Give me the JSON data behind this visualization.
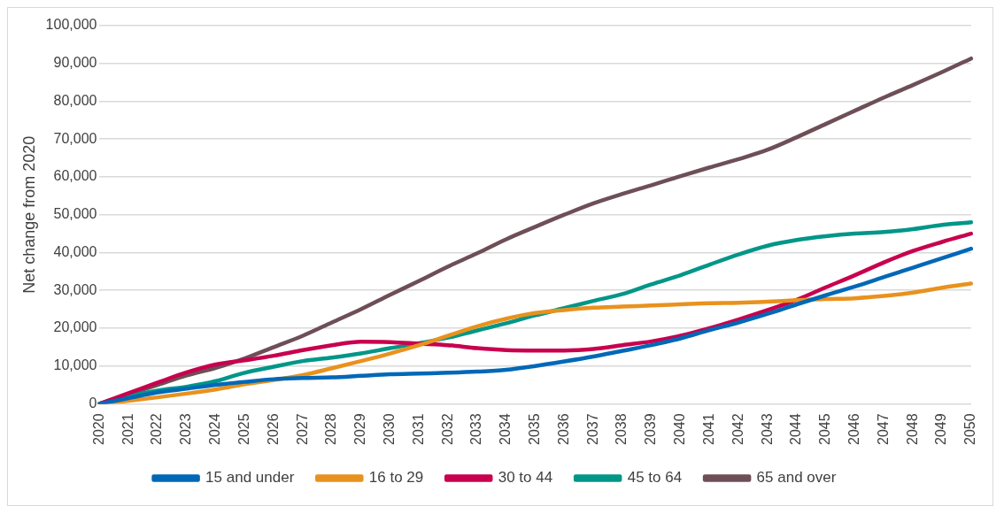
{
  "chart_data": {
    "type": "line",
    "ylabel": "Net change from 2020",
    "categories": [
      "2020",
      "2021",
      "2022",
      "2023",
      "2024",
      "2025",
      "2026",
      "2027",
      "2028",
      "2029",
      "2030",
      "2031",
      "2032",
      "2033",
      "2034",
      "2035",
      "2036",
      "2037",
      "2038",
      "2039",
      "2040",
      "2041",
      "2042",
      "2043",
      "2044",
      "2045",
      "2046",
      "2047",
      "2048",
      "2049",
      "2050"
    ],
    "ylim": [
      0,
      100000
    ],
    "yticks": [
      {
        "value": 0,
        "label": "0"
      },
      {
        "value": 10000,
        "label": "10,000"
      },
      {
        "value": 20000,
        "label": "20,000"
      },
      {
        "value": 30000,
        "label": "30,000"
      },
      {
        "value": 40000,
        "label": "40,000"
      },
      {
        "value": 50000,
        "label": "50,000"
      },
      {
        "value": 60000,
        "label": "60,000"
      },
      {
        "value": 70000,
        "label": "70,000"
      },
      {
        "value": 80000,
        "label": "80,000"
      },
      {
        "value": 90000,
        "label": "90,000"
      },
      {
        "value": 100000,
        "label": "100,000"
      }
    ],
    "grid": "y",
    "legend": "bottom",
    "marker": "none",
    "line_style": "solid",
    "series": [
      {
        "name": "15 and under",
        "color": "#0068b7",
        "values": [
          0,
          1500,
          3000,
          4000,
          5000,
          5800,
          6500,
          6800,
          7000,
          7400,
          7800,
          8000,
          8200,
          8500,
          9000,
          10000,
          11200,
          12500,
          14000,
          15500,
          17300,
          19500,
          21500,
          23800,
          26300,
          28700,
          31000,
          33500,
          36000,
          38500,
          41000
        ]
      },
      {
        "name": "16 to 29",
        "color": "#e8921e",
        "values": [
          0,
          800,
          1700,
          2700,
          3800,
          5200,
          6300,
          7600,
          9400,
          11300,
          13300,
          15500,
          18000,
          20500,
          22500,
          24000,
          24800,
          25400,
          25700,
          26000,
          26300,
          26600,
          26700,
          27000,
          27400,
          27700,
          27900,
          28500,
          29400,
          30700,
          31800
        ]
      },
      {
        "name": "30 to 44",
        "color": "#c8004e",
        "values": [
          0,
          2800,
          5600,
          8300,
          10400,
          11500,
          12700,
          14200,
          15500,
          16400,
          16300,
          15900,
          15500,
          14700,
          14200,
          14100,
          14100,
          14500,
          15500,
          16500,
          18000,
          20000,
          22300,
          24800,
          27500,
          30800,
          34000,
          37400,
          40400,
          42800,
          45000
        ]
      },
      {
        "name": "45 to 64",
        "color": "#009688",
        "values": [
          0,
          2000,
          3500,
          4500,
          6000,
          8200,
          9800,
          11300,
          12200,
          13300,
          14700,
          16000,
          17500,
          19400,
          21300,
          23400,
          25300,
          27200,
          29000,
          31600,
          34000,
          36800,
          39500,
          41800,
          43300,
          44300,
          45000,
          45400,
          46200,
          47300,
          48000
        ]
      },
      {
        "name": "65 and over",
        "color": "#6e4f57",
        "values": [
          0,
          2500,
          5000,
          7500,
          9500,
          12000,
          15000,
          18000,
          21500,
          25000,
          28800,
          32500,
          36300,
          39800,
          43500,
          46800,
          50000,
          53000,
          55500,
          57800,
          60200,
          62500,
          64700,
          67200,
          70500,
          74000,
          77500,
          81000,
          84300,
          87700,
          91300
        ]
      }
    ]
  }
}
